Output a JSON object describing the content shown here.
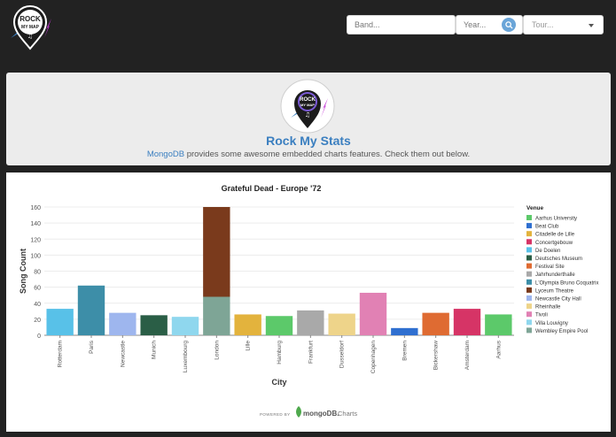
{
  "header": {
    "logo_alt": "Rock My Map",
    "logo_text_top": "ROCK",
    "logo_text_bottom": "MY MAP",
    "band_placeholder": "Band...",
    "year_placeholder": "Year...",
    "tour_placeholder": "Tour..."
  },
  "hero": {
    "title": "Rock My Stats",
    "link": "MongoDB",
    "subtitle_rest": " provides some awesome embedded charts features. Check them out below."
  },
  "footer": {
    "powered_by": "POWERED BY",
    "brand": "mongoDB.",
    "product": "Charts"
  },
  "chart_data": {
    "type": "bar",
    "title": "Grateful Dead - Europe '72",
    "xlabel": "City",
    "ylabel": "Song Count",
    "ylim": [
      0,
      160
    ],
    "yticks": [
      0,
      20,
      40,
      60,
      80,
      100,
      120,
      140,
      160
    ],
    "grid": true,
    "legend_title": "Venue",
    "legend_position": "right",
    "categories": [
      "Rotterdam",
      "Paris",
      "Newcastle",
      "Munich",
      "Luxembourg",
      "London",
      "Lille",
      "Hamburg",
      "Frankfurt",
      "Dusseldorf",
      "Copenhagen",
      "Bremen",
      "Bickershaw",
      "Amsterdam",
      "Aarhus"
    ],
    "venues": [
      {
        "name": "Aarhus University",
        "color": "#5cc96a"
      },
      {
        "name": "Beat Club",
        "color": "#2f6fd0"
      },
      {
        "name": "Citadelle de Lille",
        "color": "#e3b33d"
      },
      {
        "name": "Concertgebouw",
        "color": "#d63466"
      },
      {
        "name": "De Doelen",
        "color": "#58c1e8"
      },
      {
        "name": "Deutsches Museum",
        "color": "#2a5e46"
      },
      {
        "name": "Festival Site",
        "color": "#df6b32"
      },
      {
        "name": "Jahrhunderthalle",
        "color": "#a9a9a9"
      },
      {
        "name": "L'Olympia Bruno Coquatrix",
        "color": "#3d8ea8"
      },
      {
        "name": "Lyceum Theatre",
        "color": "#7a3a1c"
      },
      {
        "name": "Newcastle City Hall",
        "color": "#9eb6ee"
      },
      {
        "name": "Rheinhalle",
        "color": "#eed48a"
      },
      {
        "name": "Tivoli",
        "color": "#e181b4"
      },
      {
        "name": "Villa Louvigny",
        "color": "#8fd7ee"
      },
      {
        "name": "Wembley Empire Pool",
        "color": "#7ea596"
      }
    ],
    "bars": [
      {
        "city": "Rotterdam",
        "segments": [
          {
            "venue": "De Doelen",
            "value": 33
          }
        ]
      },
      {
        "city": "Paris",
        "segments": [
          {
            "venue": "L'Olympia Bruno Coquatrix",
            "value": 62
          }
        ]
      },
      {
        "city": "Newcastle",
        "segments": [
          {
            "venue": "Newcastle City Hall",
            "value": 28
          }
        ]
      },
      {
        "city": "Munich",
        "segments": [
          {
            "venue": "Deutsches Museum",
            "value": 25
          }
        ]
      },
      {
        "city": "Luxembourg",
        "segments": [
          {
            "venue": "Villa Louvigny",
            "value": 23
          }
        ]
      },
      {
        "city": "London",
        "segments": [
          {
            "venue": "Wembley Empire Pool",
            "value": 48
          },
          {
            "venue": "Lyceum Theatre",
            "value": 112
          }
        ]
      },
      {
        "city": "Lille",
        "segments": [
          {
            "venue": "Citadelle de Lille",
            "value": 26
          }
        ]
      },
      {
        "city": "Hamburg",
        "segments": [
          {
            "venue": "Aarhus University",
            "value": 24
          }
        ]
      },
      {
        "city": "Frankfurt",
        "segments": [
          {
            "venue": "Jahrhunderthalle",
            "value": 31
          }
        ]
      },
      {
        "city": "Dusseldorf",
        "segments": [
          {
            "venue": "Rheinhalle",
            "value": 27
          }
        ]
      },
      {
        "city": "Copenhagen",
        "segments": [
          {
            "venue": "Tivoli",
            "value": 53
          }
        ]
      },
      {
        "city": "Bremen",
        "segments": [
          {
            "venue": "Beat Club",
            "value": 9
          }
        ]
      },
      {
        "city": "Bickershaw",
        "segments": [
          {
            "venue": "Festival Site",
            "value": 28
          }
        ]
      },
      {
        "city": "Amsterdam",
        "segments": [
          {
            "venue": "Concertgebouw",
            "value": 33
          }
        ]
      },
      {
        "city": "Aarhus",
        "segments": [
          {
            "venue": "Aarhus University",
            "value": 26
          }
        ]
      }
    ]
  }
}
